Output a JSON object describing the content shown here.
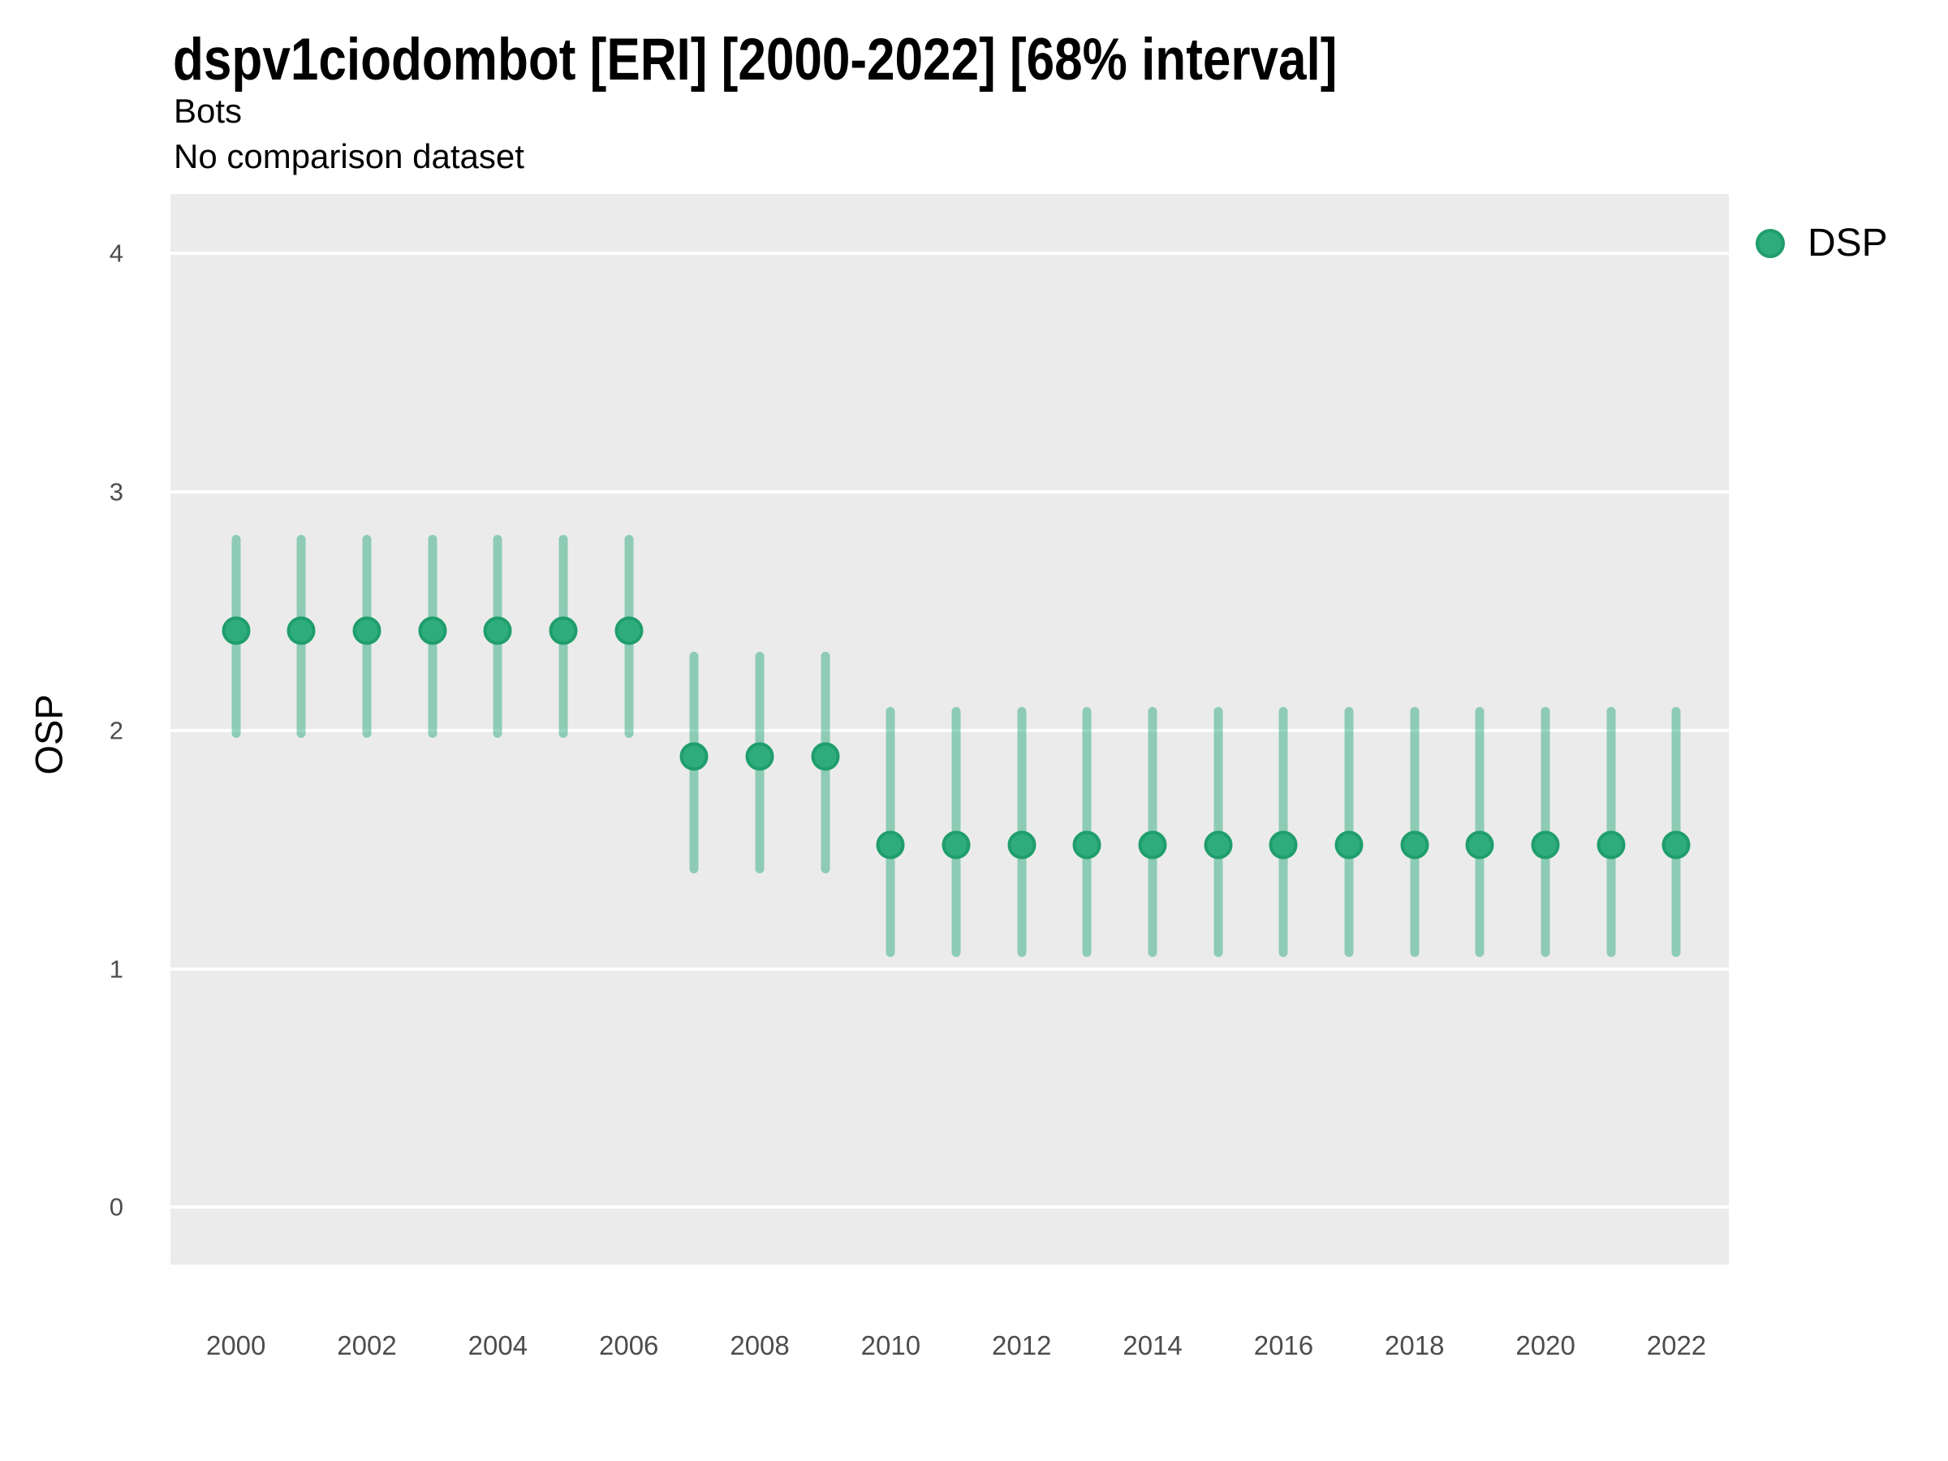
{
  "chart_data": {
    "type": "scatter",
    "title": "dspv1ciodombot [ERI] [2000-2022] [68% interval]",
    "subtitle": "Bots",
    "note": "No comparison dataset",
    "xlabel": "",
    "ylabel": "OSP",
    "interval_label": "68% interval",
    "legend_position": "top-right",
    "grid": {
      "horizontal_major": true,
      "vertical": false
    },
    "x_ticks": [
      2000,
      2002,
      2004,
      2006,
      2008,
      2010,
      2012,
      2014,
      2016,
      2018,
      2020,
      2022
    ],
    "y_ticks": [
      0,
      1,
      2,
      3,
      4
    ],
    "xlim": [
      1999.0,
      2022.8
    ],
    "ylim": [
      -0.24,
      4.25
    ],
    "series": [
      {
        "name": "DSP",
        "points": [
          {
            "x": 2000,
            "y": 2.42,
            "lo": 1.97,
            "hi": 2.82
          },
          {
            "x": 2001,
            "y": 2.42,
            "lo": 1.97,
            "hi": 2.82
          },
          {
            "x": 2002,
            "y": 2.42,
            "lo": 1.97,
            "hi": 2.82
          },
          {
            "x": 2003,
            "y": 2.42,
            "lo": 1.97,
            "hi": 2.82
          },
          {
            "x": 2004,
            "y": 2.42,
            "lo": 1.97,
            "hi": 2.82
          },
          {
            "x": 2005,
            "y": 2.42,
            "lo": 1.97,
            "hi": 2.82
          },
          {
            "x": 2006,
            "y": 2.42,
            "lo": 1.97,
            "hi": 2.82
          },
          {
            "x": 2007,
            "y": 1.89,
            "lo": 1.4,
            "hi": 2.33
          },
          {
            "x": 2008,
            "y": 1.89,
            "lo": 1.4,
            "hi": 2.33
          },
          {
            "x": 2009,
            "y": 1.89,
            "lo": 1.4,
            "hi": 2.33
          },
          {
            "x": 2010,
            "y": 1.52,
            "lo": 1.05,
            "hi": 2.1
          },
          {
            "x": 2011,
            "y": 1.52,
            "lo": 1.05,
            "hi": 2.1
          },
          {
            "x": 2012,
            "y": 1.52,
            "lo": 1.05,
            "hi": 2.1
          },
          {
            "x": 2013,
            "y": 1.52,
            "lo": 1.05,
            "hi": 2.1
          },
          {
            "x": 2014,
            "y": 1.52,
            "lo": 1.05,
            "hi": 2.1
          },
          {
            "x": 2015,
            "y": 1.52,
            "lo": 1.05,
            "hi": 2.1
          },
          {
            "x": 2016,
            "y": 1.52,
            "lo": 1.05,
            "hi": 2.1
          },
          {
            "x": 2017,
            "y": 1.52,
            "lo": 1.05,
            "hi": 2.1
          },
          {
            "x": 2018,
            "y": 1.52,
            "lo": 1.05,
            "hi": 2.1
          },
          {
            "x": 2019,
            "y": 1.52,
            "lo": 1.05,
            "hi": 2.1
          },
          {
            "x": 2020,
            "y": 1.52,
            "lo": 1.05,
            "hi": 2.1
          },
          {
            "x": 2021,
            "y": 1.52,
            "lo": 1.05,
            "hi": 2.1
          },
          {
            "x": 2022,
            "y": 1.52,
            "lo": 1.05,
            "hi": 2.1
          }
        ]
      }
    ],
    "colors": {
      "marker_fill": "#2FAC7C",
      "marker_stroke": "#1F9E6C",
      "errorbar_rgba": "rgba(42,169,124,0.49)",
      "panel_bg": "#EBEBEB",
      "gridline": "#FFFFFF",
      "tick_label": "#4D4D4D",
      "text": "#000000"
    }
  },
  "legend": {
    "items": [
      {
        "label": "DSP"
      }
    ]
  }
}
